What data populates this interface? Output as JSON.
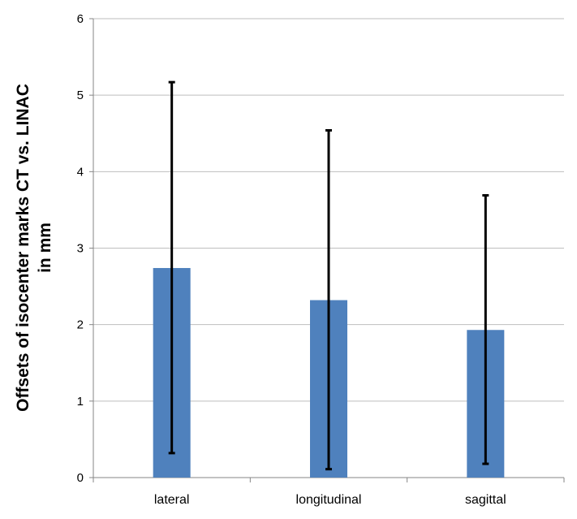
{
  "chart_data": {
    "type": "bar",
    "title": "",
    "xlabel": "",
    "ylabel_line1": "Offsets of isocenter marks CT vs. LINAC",
    "ylabel_line2": "in mm",
    "categories": [
      "lateral",
      "longitudinal",
      "sagittal"
    ],
    "series": [
      {
        "values": [
          2.74,
          2.32,
          1.93
        ],
        "error_low": [
          0.32,
          0.11,
          0.18
        ],
        "error_high": [
          5.17,
          4.54,
          3.69
        ],
        "color": "#4F81BD"
      }
    ],
    "ylim": [
      0,
      6
    ],
    "yticks": [
      "0",
      "1",
      "2",
      "3",
      "4",
      "5",
      "6"
    ],
    "grid": true,
    "legend": "none",
    "error_bar_color": "#000000",
    "grid_color": "#BEBEBE"
  }
}
